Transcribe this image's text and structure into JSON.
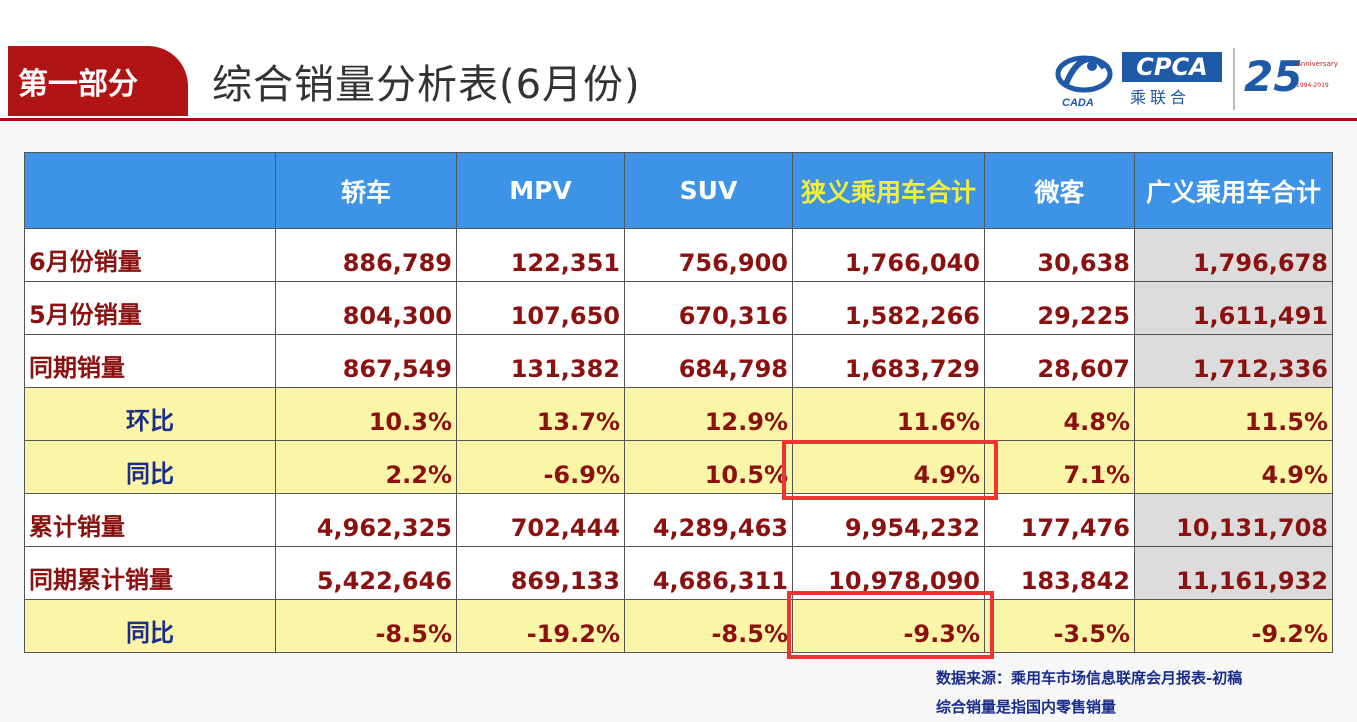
{
  "header": {
    "section_tab": "第一部分",
    "title": "综合销量分析表(6月份)",
    "logos": {
      "cpca_text": "CPCA",
      "cpca_sub": "乘联合",
      "swirl_text": "CADA",
      "anniversary_number": "25",
      "anniversary_label": "Anniversary",
      "anniversary_years": "1994-2019"
    }
  },
  "table": {
    "columns": [
      "轿车",
      "MPV",
      "SUV",
      "狭义乘用车合计",
      "微客",
      "广义乘用车合计"
    ],
    "highlight_column_index": 3,
    "rows": [
      {
        "label": "6月份销量",
        "type": "plain",
        "values": [
          "886,789",
          "122,351",
          "756,900",
          "1,766,040",
          "30,638",
          "1,796,678"
        ]
      },
      {
        "label": "5月份销量",
        "type": "plain",
        "values": [
          "804,300",
          "107,650",
          "670,316",
          "1,582,266",
          "29,225",
          "1,611,491"
        ]
      },
      {
        "label": "同期销量",
        "type": "plain",
        "values": [
          "867,549",
          "131,382",
          "684,798",
          "1,683,729",
          "28,607",
          "1,712,336"
        ]
      },
      {
        "label": "环比",
        "type": "sub",
        "values": [
          "10.3%",
          "13.7%",
          "12.9%",
          "11.6%",
          "4.8%",
          "11.5%"
        ]
      },
      {
        "label": "同比",
        "type": "sub",
        "values": [
          "2.2%",
          "-6.9%",
          "10.5%",
          "4.9%",
          "7.1%",
          "4.9%"
        ]
      },
      {
        "label": "累计销量",
        "type": "plain",
        "values": [
          "4,962,325",
          "702,444",
          "4,289,463",
          "9,954,232",
          "177,476",
          "10,131,708"
        ]
      },
      {
        "label": "同期累计销量",
        "type": "plain",
        "values": [
          "5,422,646",
          "869,133",
          "4,686,311",
          "10,978,090",
          "183,842",
          "11,161,932"
        ]
      },
      {
        "label": "同比",
        "type": "sub",
        "values": [
          "-8.5%",
          "-19.2%",
          "-8.5%",
          "-9.3%",
          "-3.5%",
          "-9.2%"
        ]
      }
    ]
  },
  "notes": {
    "source": "数据来源：乘用车市场信息联席会月报表-初稿",
    "definition": "综合销量是指国内零售销量"
  },
  "colors": {
    "header_blue": "#3d93e6",
    "highlight_text": "#f2ee3c",
    "value_red": "#8b1111",
    "sub_label_blue": "#1a2d8a",
    "sub_row_yellow": "#fbf6a7",
    "box_red": "#ee3333",
    "section_red": "#b01414"
  }
}
